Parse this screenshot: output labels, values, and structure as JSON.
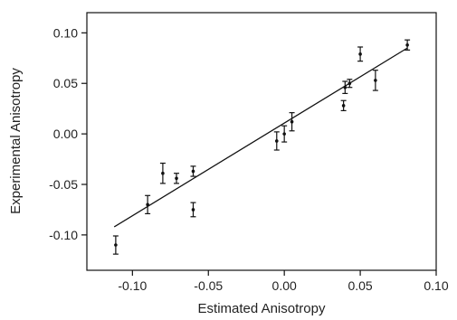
{
  "chart_data": {
    "type": "scatter",
    "xlabel": "Estimated Anisotropy",
    "ylabel": "Experimental Anisotropy",
    "xlim": [
      -0.13,
      0.1
    ],
    "ylim": [
      -0.135,
      0.12
    ],
    "x_ticks": [
      -0.1,
      -0.05,
      0.0,
      0.05,
      0.1
    ],
    "x_tick_labels": [
      "-0.10",
      "-0.05",
      "0.00",
      "0.05",
      "0.10"
    ],
    "y_ticks": [
      -0.1,
      -0.05,
      0.0,
      0.05,
      0.1
    ],
    "y_tick_labels": [
      "-0.10",
      "-0.05",
      "0.00",
      "0.05",
      "0.10"
    ],
    "grid": false,
    "points": [
      {
        "x": -0.111,
        "y": -0.11,
        "err": 0.009
      },
      {
        "x": -0.09,
        "y": -0.07,
        "err": 0.009
      },
      {
        "x": -0.08,
        "y": -0.039,
        "err": 0.01
      },
      {
        "x": -0.071,
        "y": -0.044,
        "err": 0.005
      },
      {
        "x": -0.06,
        "y": -0.037,
        "err": 0.005
      },
      {
        "x": -0.06,
        "y": -0.075,
        "err": 0.007
      },
      {
        "x": -0.005,
        "y": -0.007,
        "err": 0.009
      },
      {
        "x": 0.0,
        "y": 0.0,
        "err": 0.008
      },
      {
        "x": 0.005,
        "y": 0.012,
        "err": 0.009
      },
      {
        "x": 0.039,
        "y": 0.028,
        "err": 0.005
      },
      {
        "x": 0.04,
        "y": 0.046,
        "err": 0.006
      },
      {
        "x": 0.043,
        "y": 0.05,
        "err": 0.004
      },
      {
        "x": 0.05,
        "y": 0.079,
        "err": 0.007
      },
      {
        "x": 0.06,
        "y": 0.053,
        "err": 0.01
      },
      {
        "x": 0.081,
        "y": 0.088,
        "err": 0.005
      }
    ],
    "fit_line": {
      "x": [
        -0.112,
        0.081
      ],
      "y": [
        -0.092,
        0.085
      ]
    }
  }
}
